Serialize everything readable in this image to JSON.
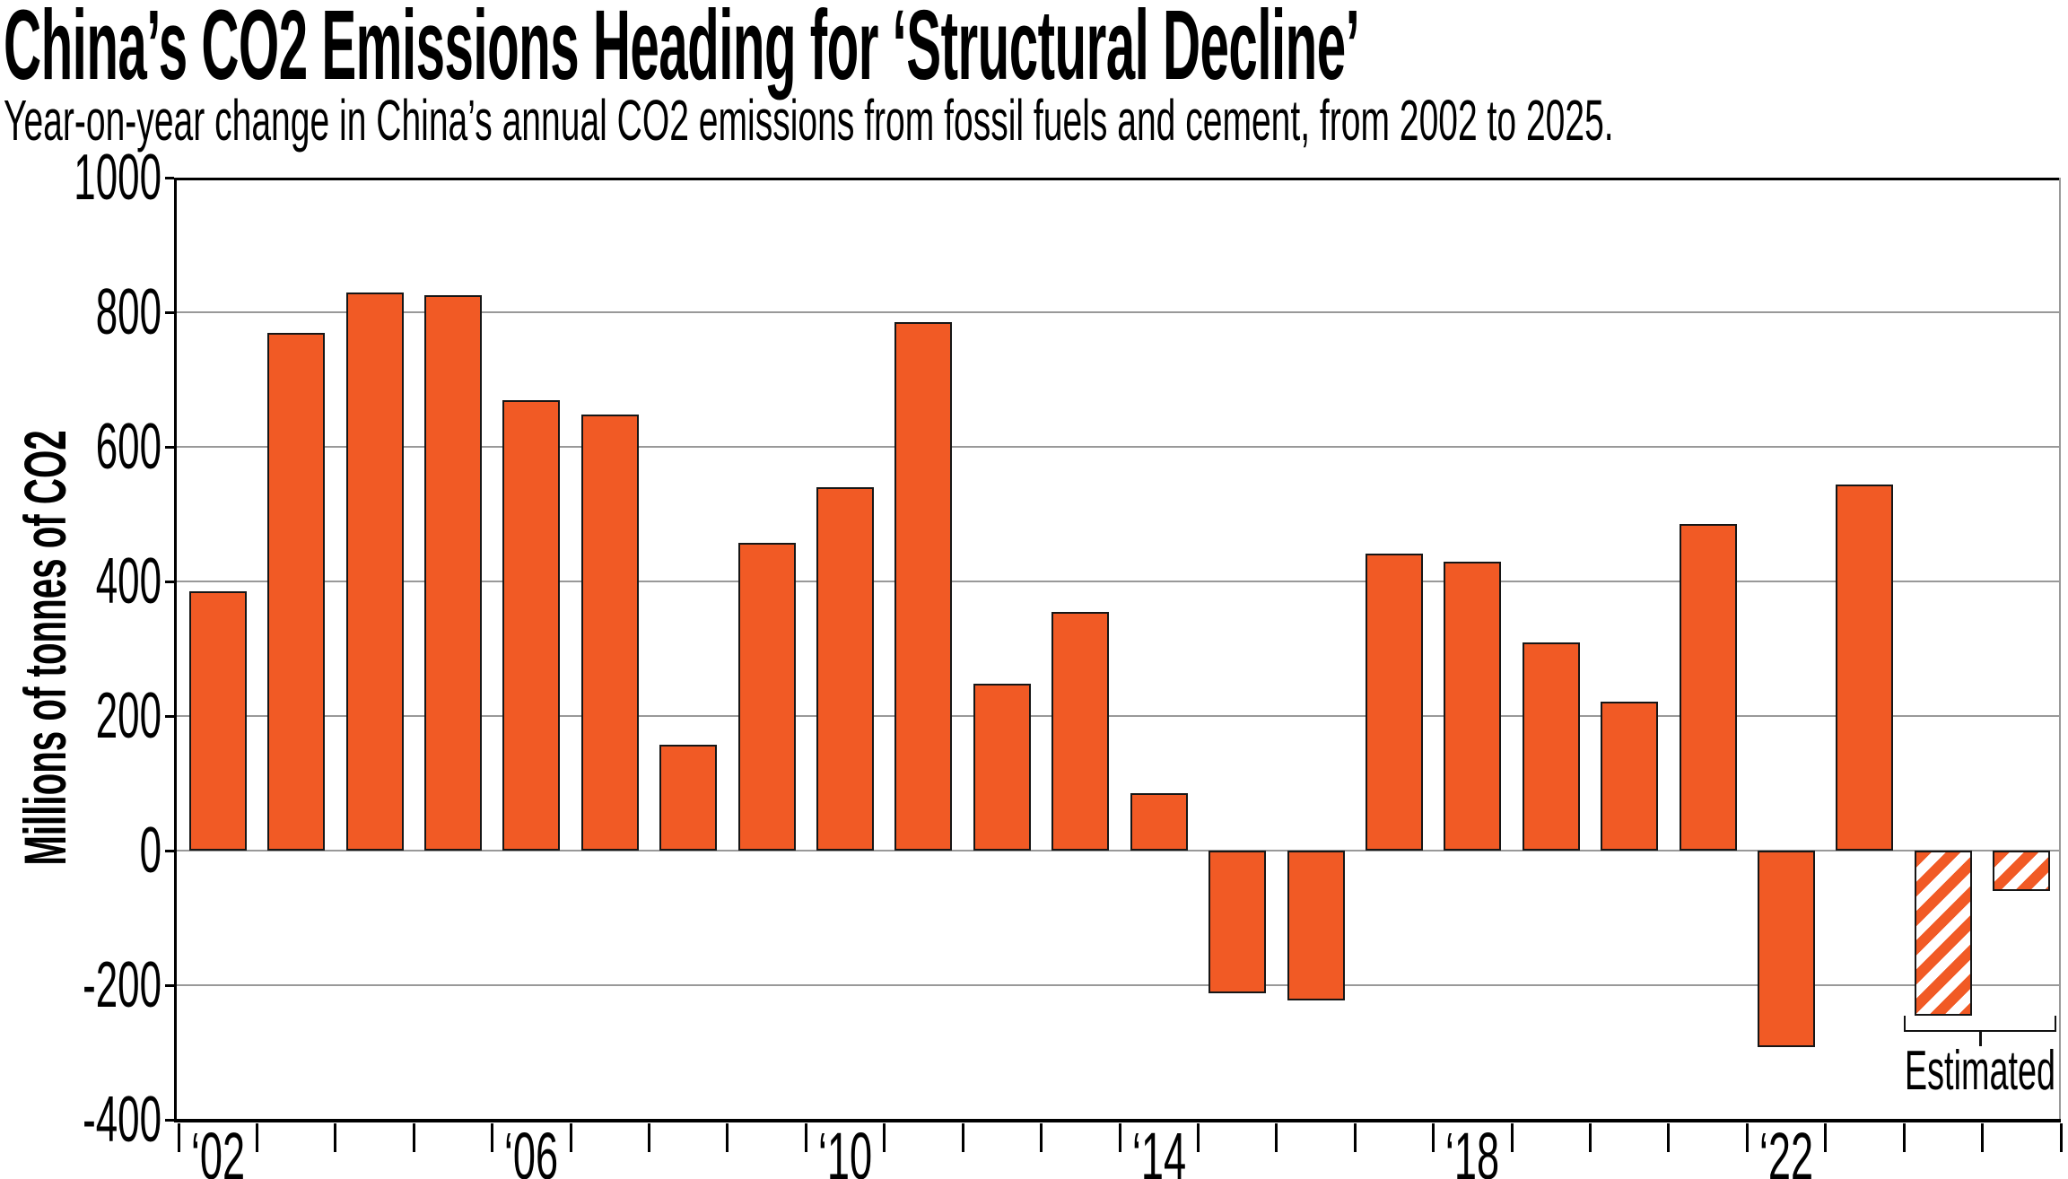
{
  "title": "China’s CO2 Emissions Heading for ‘Structural Decline’",
  "subtitle": "Year-on-year change in China’s annual CO2 emissions from fossil fuels and cement, from 2002 to 2025.",
  "annotations": {
    "estimated_label": "Estimated"
  },
  "colors": {
    "bar": "#F15A25",
    "bar_border": "#161616",
    "grid": "#999999",
    "axis": "#000000",
    "hatch_bg": "#FFFFFF",
    "text": "#000000"
  },
  "chart_data": {
    "type": "bar",
    "title": "China’s CO2 Emissions Heading for ‘Structural Decline’",
    "subtitle": "Year-on-year change in China’s annual CO2 emissions from fossil fuels and cement, from 2002 to 2025.",
    "xlabel": "",
    "ylabel": "Millions of tonnes of CO2",
    "ylim": [
      -400,
      1000
    ],
    "ytick_interval": 200,
    "yticks": [
      1000,
      800,
      600,
      400,
      200,
      0,
      -200,
      -400
    ],
    "grid": "horizontal",
    "legend_position": "none",
    "categories": [
      2002,
      2003,
      2004,
      2005,
      2006,
      2007,
      2008,
      2009,
      2010,
      2011,
      2012,
      2013,
      2014,
      2015,
      2016,
      2017,
      2018,
      2019,
      2020,
      2021,
      2022,
      2023,
      2024,
      2025
    ],
    "values": [
      385,
      770,
      830,
      825,
      670,
      648,
      158,
      458,
      540,
      785,
      248,
      355,
      85,
      -212,
      -222,
      442,
      430,
      310,
      222,
      486,
      -292,
      544,
      -245,
      -60
    ],
    "estimated": [
      false,
      false,
      false,
      false,
      false,
      false,
      false,
      false,
      false,
      false,
      false,
      false,
      false,
      false,
      false,
      false,
      false,
      false,
      false,
      false,
      false,
      false,
      true,
      true
    ],
    "estimated_years": [
      2024,
      2025
    ],
    "xtick_labels": [
      "‘02",
      "‘06",
      "‘10",
      "‘14",
      "‘18",
      "‘22"
    ],
    "xtick_years": [
      2002,
      2006,
      2010,
      2014,
      2018,
      2022
    ]
  }
}
